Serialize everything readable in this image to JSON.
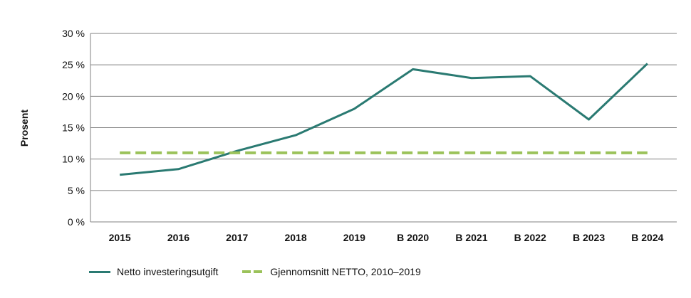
{
  "chart_data": {
    "type": "line",
    "title": "",
    "xlabel": "",
    "ylabel": "Prosent",
    "ylim": [
      0,
      30
    ],
    "yticks": [
      "0 %",
      "5 %",
      "10 %",
      "15 %",
      "20 %",
      "25 %",
      "30 %"
    ],
    "ytick_values": [
      0,
      5,
      10,
      15,
      20,
      25,
      30
    ],
    "grid": true,
    "legend_position": "bottom-left",
    "categories": [
      "2015",
      "2016",
      "2017",
      "2018",
      "2019",
      "B 2020",
      "B 2021",
      "B 2022",
      "B 2023",
      "B 2024"
    ],
    "series": [
      {
        "name": "Netto investeringsutgift",
        "color": "#2a7a72",
        "style": "solid",
        "values": [
          7.5,
          8.4,
          11.3,
          13.8,
          18.0,
          24.3,
          22.9,
          23.2,
          16.3,
          25.2
        ]
      },
      {
        "name": "Gjennomsnitt NETTO, 2010–2019",
        "color": "#9bc25a",
        "style": "dashed",
        "values": [
          11.0,
          11.0,
          11.0,
          11.0,
          11.0,
          11.0,
          11.0,
          11.0,
          11.0,
          11.0
        ]
      }
    ]
  }
}
